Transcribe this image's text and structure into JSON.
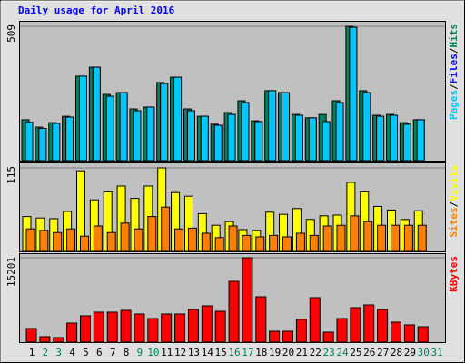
{
  "title": "Daily usage for April 2016",
  "chart_data": [
    {
      "type": "bar",
      "ylim": [
        0,
        509
      ],
      "yticks": [
        509
      ],
      "legend_separator": "/",
      "series": [
        {
          "name": "Hits",
          "color": "#00805c",
          "values": [
            155,
            127,
            144,
            168,
            320,
            354,
            251,
            258,
            196,
            203,
            296,
            316,
            196,
            168,
            138,
            182,
            227,
            151,
            265,
            258,
            175,
            162,
            175,
            227,
            509,
            265,
            172,
            175,
            144,
            155,
            null
          ]
        },
        {
          "name": "Files",
          "color": "#0000ff",
          "values": [
            145,
            122,
            141,
            165,
            320,
            354,
            244,
            258,
            189,
            203,
            292,
            316,
            189,
            168,
            134,
            175,
            220,
            148,
            265,
            258,
            172,
            162,
            148,
            220,
            505,
            258,
            168,
            172,
            138,
            155,
            null
          ]
        },
        {
          "name": "Pages",
          "color": "#00c8ff",
          "values": [
            145,
            122,
            141,
            165,
            320,
            354,
            244,
            258,
            189,
            203,
            292,
            316,
            189,
            168,
            134,
            175,
            220,
            148,
            265,
            258,
            172,
            162,
            148,
            220,
            505,
            258,
            168,
            172,
            138,
            155,
            null
          ]
        }
      ]
    },
    {
      "type": "bar",
      "ylim": [
        0,
        115
      ],
      "yticks": [
        115
      ],
      "legend_separator": "/",
      "series": [
        {
          "name": "Visits",
          "color": "#ffff00",
          "values": [
            48,
            46,
            45,
            55,
            111,
            71,
            82,
            90,
            73,
            90,
            115,
            81,
            76,
            52,
            36,
            41,
            30,
            29,
            54,
            51,
            59,
            44,
            49,
            50,
            95,
            82,
            62,
            57,
            44,
            56,
            null
          ]
        },
        {
          "name": "Sites",
          "color": "#ff8000",
          "values": [
            31,
            29,
            26,
            31,
            21,
            35,
            26,
            39,
            31,
            48,
            61,
            31,
            32,
            25,
            19,
            35,
            22,
            20,
            22,
            20,
            25,
            22,
            35,
            36,
            49,
            41,
            36,
            36,
            36,
            36,
            null
          ]
        }
      ]
    },
    {
      "type": "bar",
      "ylim": [
        0,
        15201
      ],
      "yticks": [
        15201
      ],
      "categories": [
        "1",
        "2",
        "3",
        "4",
        "5",
        "6",
        "7",
        "8",
        "9",
        "10",
        "11",
        "12",
        "13",
        "14",
        "15",
        "16",
        "17",
        "18",
        "19",
        "20",
        "21",
        "22",
        "23",
        "24",
        "25",
        "26",
        "27",
        "28",
        "29",
        "30",
        "31"
      ],
      "category_colors": [
        "#000000",
        "#00805c",
        "#00805c",
        "#000000",
        "#000000",
        "#000000",
        "#000000",
        "#000000",
        "#00805c",
        "#00805c",
        "#000000",
        "#000000",
        "#000000",
        "#000000",
        "#000000",
        "#00805c",
        "#00805c",
        "#000000",
        "#000000",
        "#000000",
        "#000000",
        "#000000",
        "#00805c",
        "#00805c",
        "#000000",
        "#000000",
        "#000000",
        "#000000",
        "#000000",
        "#00805c",
        "#00805c"
      ],
      "series": [
        {
          "name": "KBytes",
          "color": "#ff0000",
          "values": [
            2453,
            981,
            818,
            3434,
            4742,
            5396,
            5396,
            5723,
            5069,
            4251,
            5069,
            5069,
            5886,
            6540,
            5559,
            10955,
            15201,
            8175,
            1962,
            1962,
            4088,
            8012,
            1799,
            4251,
            6213,
            6704,
            5886,
            3597,
            3107,
            2780,
            null
          ]
        }
      ]
    }
  ]
}
